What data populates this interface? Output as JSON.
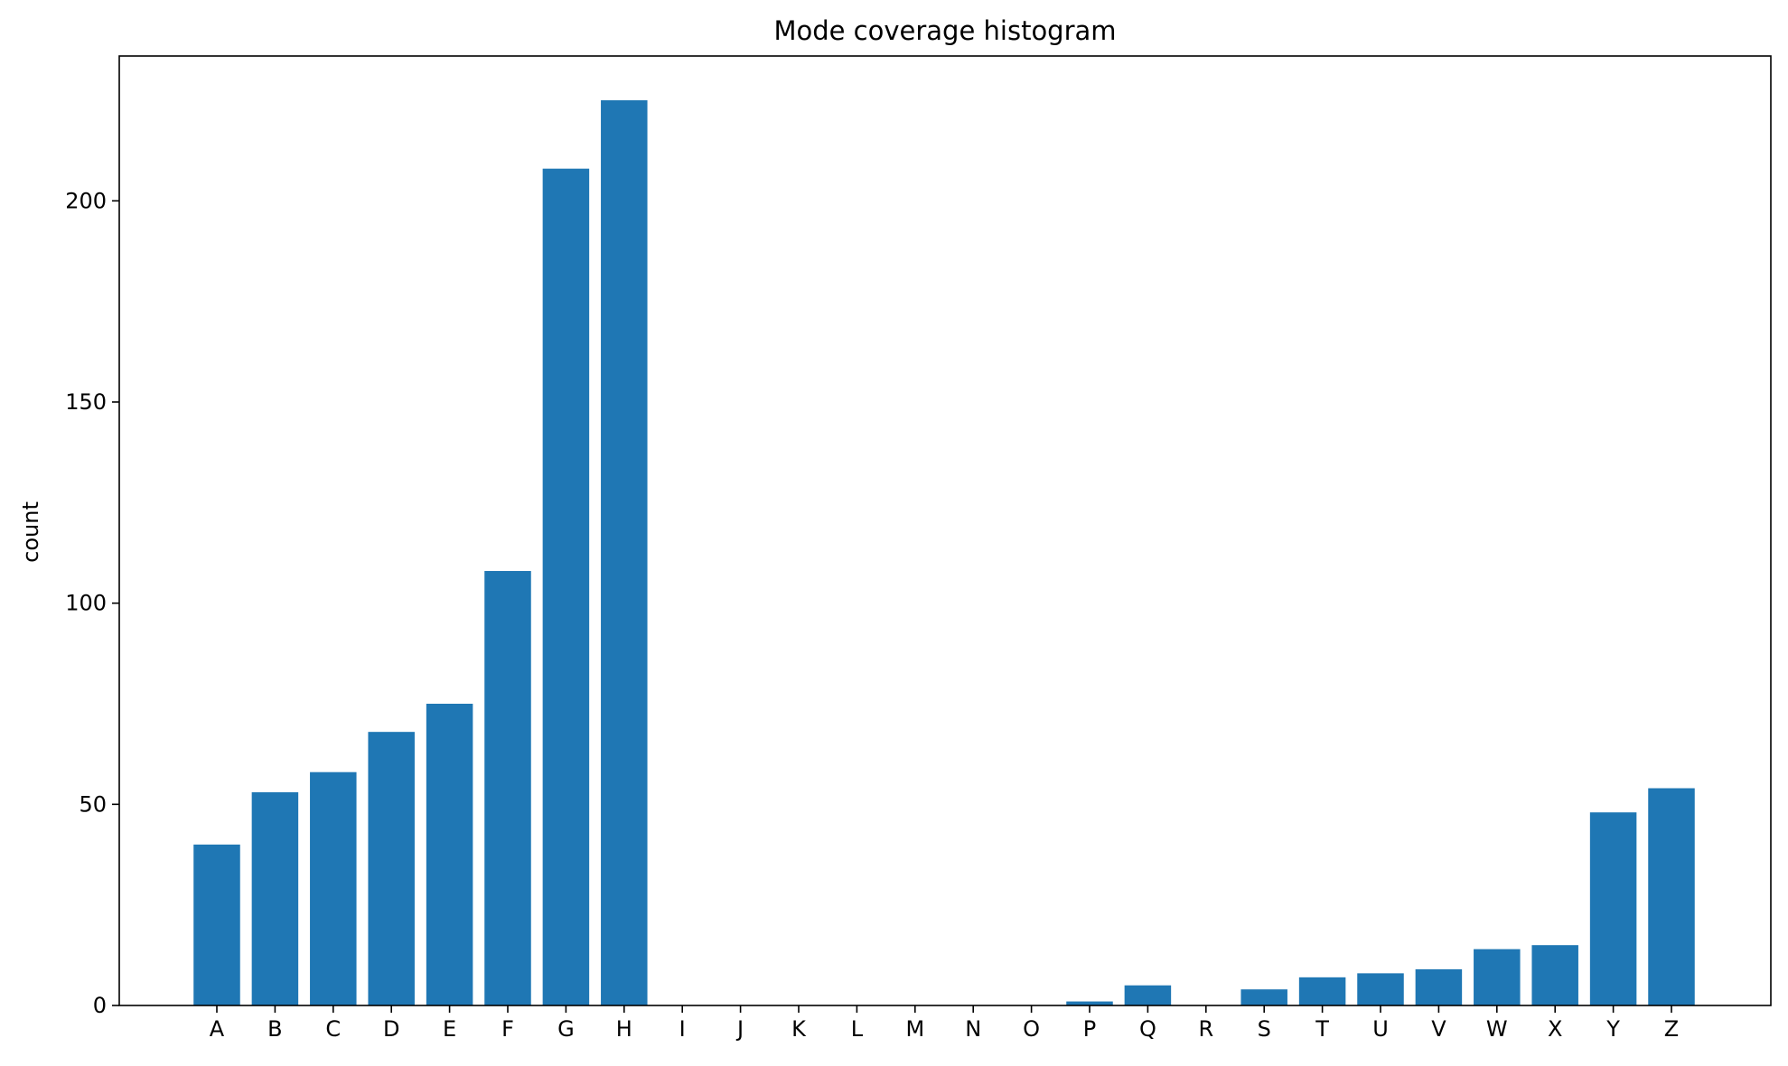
{
  "chart_data": {
    "type": "bar",
    "title": "Mode coverage histogram",
    "xlabel": "",
    "ylabel": "count",
    "categories": [
      "A",
      "B",
      "C",
      "D",
      "E",
      "F",
      "G",
      "H",
      "I",
      "J",
      "K",
      "L",
      "M",
      "N",
      "O",
      "P",
      "Q",
      "R",
      "S",
      "T",
      "U",
      "V",
      "W",
      "X",
      "Y",
      "Z"
    ],
    "values": [
      40,
      53,
      58,
      68,
      75,
      108,
      208,
      225,
      0,
      0,
      0,
      0,
      0,
      0,
      0,
      1,
      5,
      0,
      4,
      7,
      8,
      9,
      14,
      15,
      48,
      54
    ],
    "ylim": [
      0,
      236
    ],
    "yticks": [
      0,
      50,
      100,
      150,
      200
    ],
    "grid": false,
    "bar_color": "#1f77b4"
  }
}
